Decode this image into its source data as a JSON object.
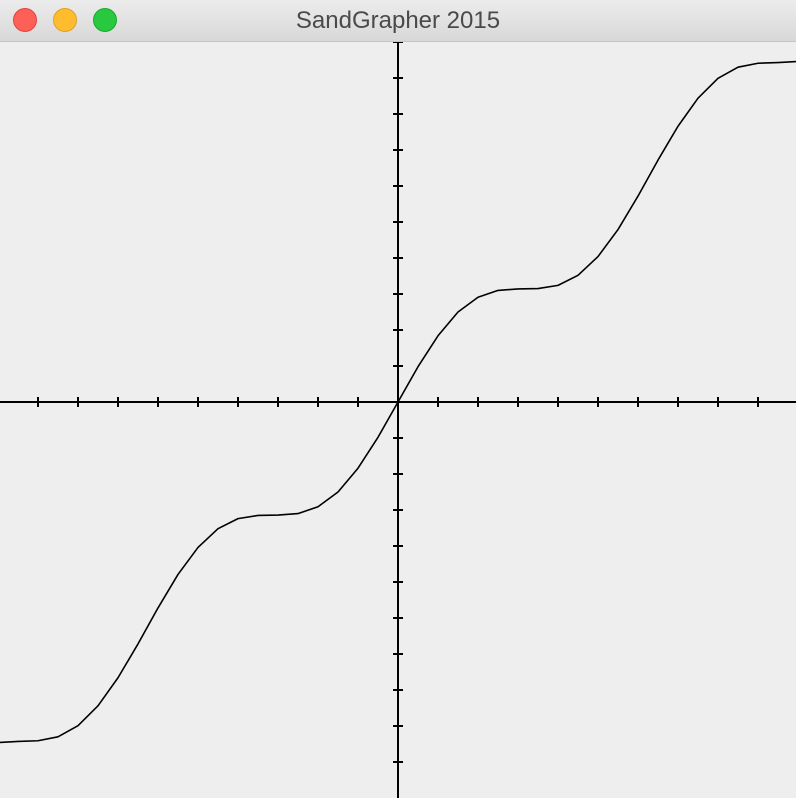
{
  "window": {
    "title": "SandGrapher 2015"
  },
  "chart_data": {
    "type": "line",
    "xlim": [
      -9.95,
      9.95
    ],
    "ylim": [
      -11,
      10
    ],
    "xticks": [
      -9,
      -8,
      -7,
      -6,
      -5,
      -4,
      -3,
      -2,
      -1,
      0,
      1,
      2,
      3,
      4,
      5,
      6,
      7,
      8,
      9
    ],
    "yticks": [
      -10,
      -9,
      -8,
      -7,
      -6,
      -5,
      -4,
      -3,
      -2,
      -1,
      0,
      1,
      2,
      3,
      4,
      5,
      6,
      7,
      8,
      9,
      10
    ],
    "x": [
      -10,
      -9.5,
      -9,
      -8.5,
      -8,
      -7.5,
      -7,
      -6.5,
      -6,
      -5.5,
      -5,
      -4.5,
      -4,
      -3.5,
      -3,
      -2.5,
      -2,
      -1.5,
      -1,
      -0.5,
      0,
      0.5,
      1,
      1.5,
      2,
      2.5,
      3,
      3.5,
      4,
      4.5,
      5,
      5.5,
      6,
      6.5,
      7,
      7.5,
      8,
      8.5,
      9,
      9.5,
      10
    ],
    "series": [
      {
        "color": "#000000",
        "values": [
          -9.46,
          -9.43,
          -9.41,
          -9.3,
          -8.99,
          -8.44,
          -7.66,
          -6.72,
          -5.72,
          -4.79,
          -4.04,
          -3.52,
          -3.24,
          -3.15,
          -3.14,
          -3.1,
          -2.91,
          -2.5,
          -1.84,
          -0.98,
          0,
          0.98,
          1.84,
          2.5,
          2.91,
          3.1,
          3.14,
          3.15,
          3.24,
          3.52,
          4.04,
          4.79,
          5.72,
          6.72,
          7.66,
          8.44,
          8.99,
          9.3,
          9.41,
          9.43,
          9.46
        ]
      }
    ]
  }
}
